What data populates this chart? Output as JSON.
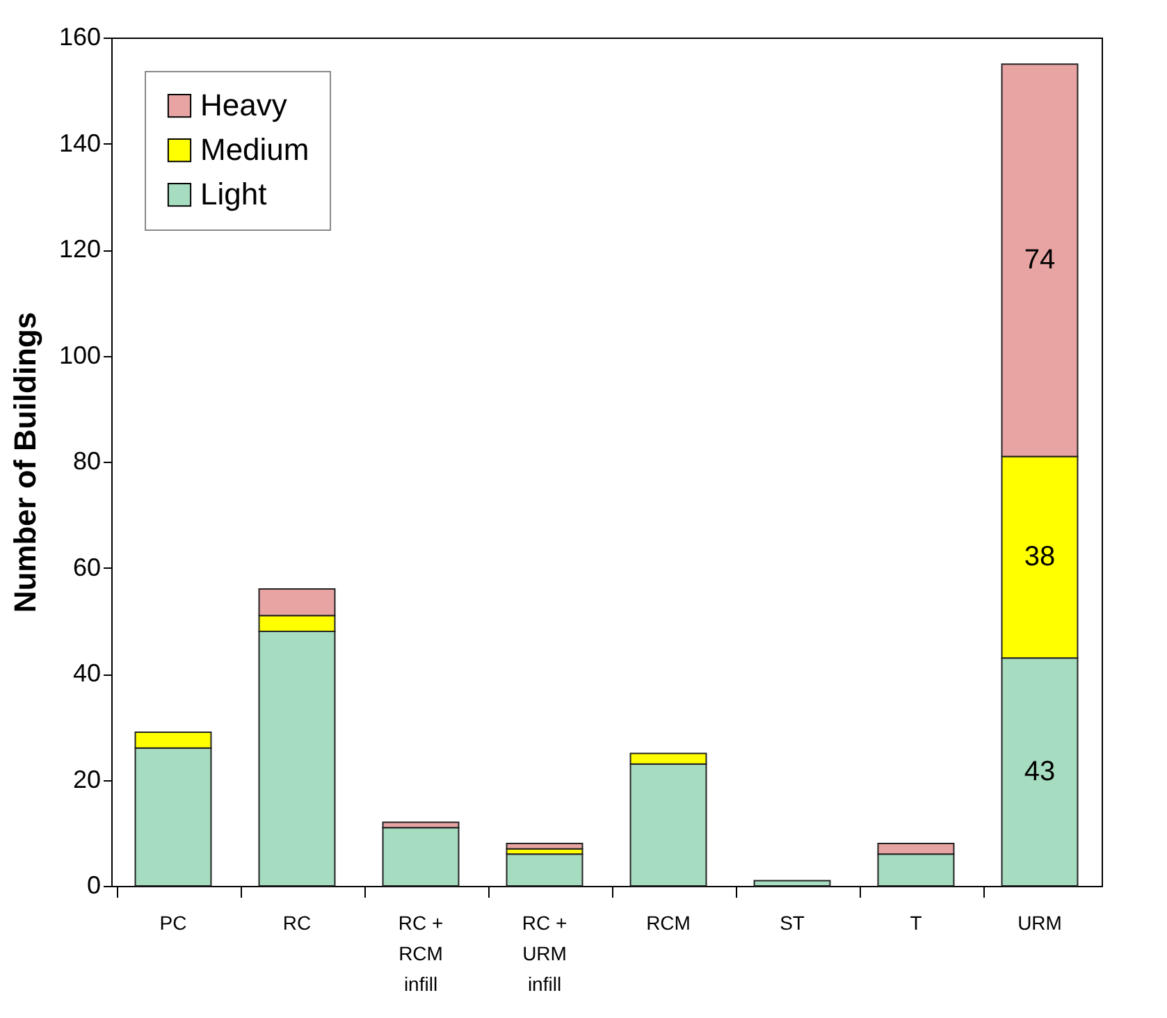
{
  "chart_data": {
    "type": "bar",
    "stacked": true,
    "ylabel": "Number of Buildings",
    "categories": [
      "PC",
      "RC",
      "RC + RCM infill",
      "RC + URM infill",
      "RCM",
      "ST",
      "T",
      "URM"
    ],
    "series": [
      {
        "name": "Light",
        "color": "#a6dcbf",
        "values": [
          26,
          48,
          11,
          6,
          23,
          1,
          6,
          43
        ],
        "value_labels": [
          null,
          null,
          null,
          null,
          null,
          null,
          null,
          "43"
        ]
      },
      {
        "name": "Medium",
        "color": "#ffff00",
        "values": [
          3,
          3,
          0,
          1,
          2,
          0,
          0,
          38
        ],
        "value_labels": [
          null,
          null,
          null,
          null,
          null,
          null,
          null,
          "38"
        ]
      },
      {
        "name": "Heavy",
        "color": "#e8a3a3",
        "values": [
          0,
          5,
          1,
          1,
          0,
          0,
          2,
          74
        ],
        "value_labels": [
          null,
          null,
          null,
          null,
          null,
          null,
          null,
          "74"
        ]
      }
    ],
    "ylim": [
      0,
      160
    ],
    "yticks": [
      0,
      20,
      40,
      60,
      80,
      100,
      120,
      140,
      160
    ],
    "grid": false,
    "legend": "top left"
  }
}
